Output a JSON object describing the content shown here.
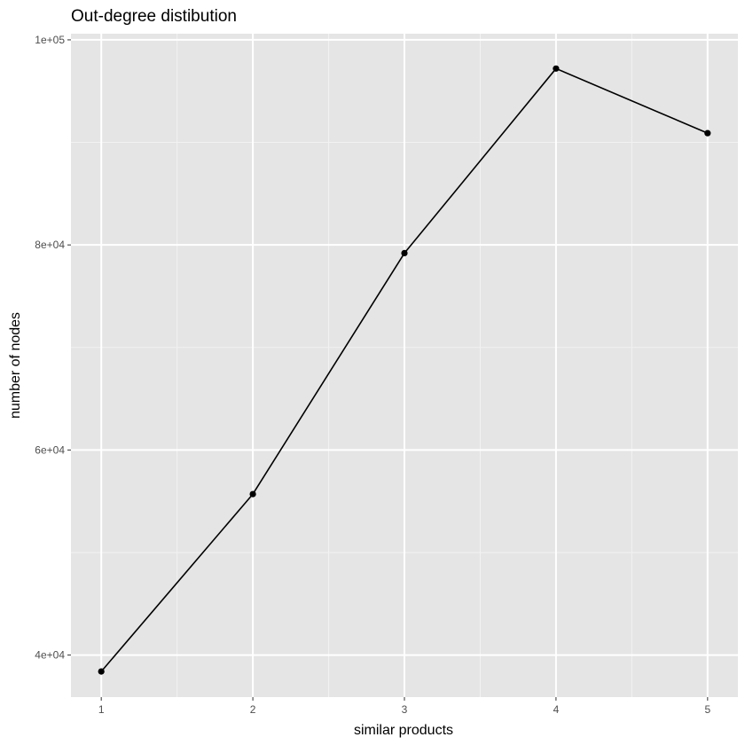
{
  "chart_data": {
    "type": "line",
    "title": "Out-degree distibution",
    "xlabel": "similar products",
    "ylabel": "number of nodes",
    "x": [
      1,
      2,
      3,
      4,
      5
    ],
    "series": [
      {
        "values": [
          38400,
          55700,
          79200,
          97200,
          90900
        ]
      }
    ],
    "xlim": [
      0.8,
      5.2
    ],
    "ylim": [
      35900,
      100600
    ],
    "x_ticks": [
      1,
      2,
      3,
      4,
      5
    ],
    "x_tick_labels": [
      "1",
      "2",
      "3",
      "4",
      "5"
    ],
    "y_ticks": [
      40000,
      60000,
      80000,
      100000
    ],
    "y_tick_labels": [
      "4e+04",
      "6e+04",
      "8e+04",
      "1e+05"
    ],
    "y_minor_ticks": [
      50000,
      70000,
      90000
    ],
    "x_minor_ticks": [
      1.5,
      2.5,
      3.5,
      4.5
    ],
    "grid": true,
    "legend": "none",
    "colors": {
      "panel_background": "#e5e5e5",
      "grid_major": "#ffffff",
      "grid_minor": "#f2f2f2",
      "line": "#000000",
      "point": "#000000",
      "tick_label": "#4d4d4d",
      "tick_mark": "#333333"
    }
  }
}
